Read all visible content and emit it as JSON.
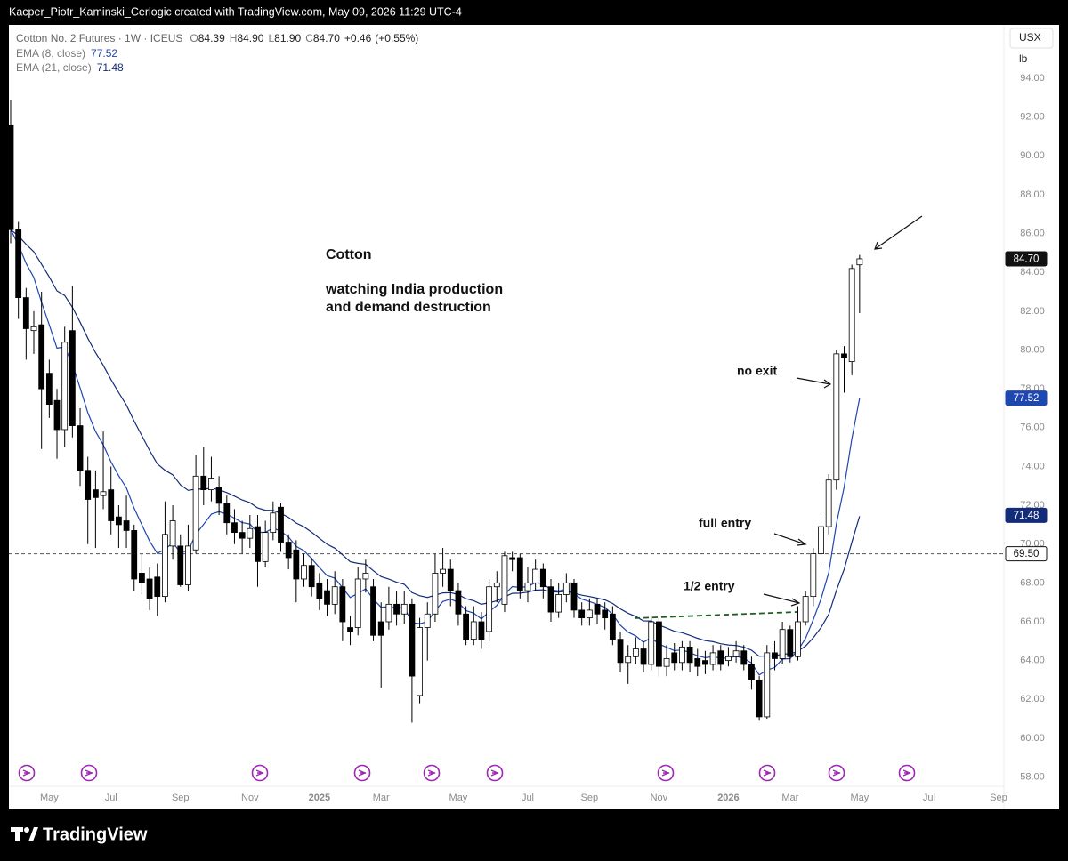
{
  "header": {
    "attribution": "Kacper_Piotr_Kaminski_Cerlogic created with TradingView.com, May 09, 2026 11:29 UTC-4"
  },
  "chart_data": {
    "type": "candlestick",
    "title": "Cotton No. 2 Futures · 1W · ICEUS",
    "summary": [
      {
        "key": "O",
        "value": 84.39,
        "label": "84.39"
      },
      {
        "key": "H",
        "value": 84.9,
        "label": "84.90"
      },
      {
        "key": "L",
        "value": 81.9,
        "label": "81.90"
      },
      {
        "key": "C",
        "value": 84.7,
        "label": "84.70"
      }
    ],
    "change": {
      "value": 0.46,
      "label": "+0.46"
    },
    "change_percent": {
      "value": 0.55,
      "label": "(+0.55%)"
    },
    "currency": "USX",
    "unit": "lb",
    "indicators": [
      {
        "name": "EMA (8, close)",
        "period": 8,
        "value": 77.52,
        "color": "#1f47b0"
      },
      {
        "name": "EMA (21, close)",
        "period": 21,
        "value": 71.48,
        "color": "#132c78"
      }
    ],
    "last_price": {
      "value": 84.7,
      "label": "84.70"
    },
    "horizontal_line": {
      "value": 69.5,
      "label": "69.50"
    },
    "up_color": "#ffffff",
    "down_color": "#000000",
    "wick_color": "#000000",
    "categories": [
      null,
      null,
      null,
      null,
      null,
      null,
      null,
      null,
      null,
      null,
      null,
      null,
      null,
      null,
      null,
      null,
      null,
      null,
      null,
      null,
      null,
      null,
      null,
      null,
      null,
      null,
      null,
      null,
      null,
      null,
      null,
      null,
      null,
      null,
      null,
      null,
      null,
      null,
      null,
      null,
      null,
      null,
      null,
      null,
      null,
      null,
      null,
      null,
      null,
      null,
      null,
      null,
      null,
      null,
      null,
      null,
      null,
      null,
      null,
      null,
      null,
      null,
      null,
      null,
      null,
      null,
      null,
      null,
      null,
      null,
      null,
      null,
      null,
      null,
      null,
      null,
      null,
      null,
      null,
      null,
      null,
      null,
      null,
      null,
      null,
      null,
      null,
      null,
      null,
      null,
      null,
      null,
      null,
      null,
      null,
      null,
      null,
      null,
      null,
      null,
      null,
      null,
      null,
      null,
      null,
      null,
      null,
      null,
      null,
      null,
      null
    ],
    "open": [
      91.6,
      86.2,
      82.7,
      81.0,
      81.3,
      78.8,
      77.4,
      75.9,
      81.0,
      76.1,
      73.8,
      72.8,
      72.5,
      72.8,
      71.4,
      71.2,
      70.7,
      68.5,
      68.2,
      68.3,
      67.3,
      69.9,
      69.9,
      67.9,
      69.7,
      73.5,
      72.8,
      72.9,
      72.1,
      71.1,
      70.6,
      70.3,
      70.9,
      69.1,
      70.6,
      71.9,
      70.1,
      69.7,
      68.2,
      68.9,
      68.0,
      67.6,
      66.9,
      67.8,
      65.7,
      65.7,
      68.2,
      67.8,
      66.0,
      66.0,
      66.9,
      66.4,
      66.9,
      62.2,
      65.7,
      66.4,
      68.5,
      68.7,
      67.6,
      66.4,
      65.1,
      66.0,
      65.5,
      67.8,
      66.9,
      69.3,
      69.3,
      67.6,
      68.0,
      68.7,
      67.8,
      66.5,
      67.4,
      68.0,
      66.6,
      66.2,
      66.9,
      66.6,
      66.4,
      65.1,
      63.9,
      64.2,
      64.6,
      63.8,
      66.0,
      63.7,
      64.4,
      63.9,
      64.7,
      64.1,
      64.0,
      63.8,
      64.5,
      64.0,
      64.2,
      64.5,
      63.8,
      63.0,
      61.1,
      64.4,
      64.1,
      65.6,
      64.2,
      66.0,
      67.3,
      69.5,
      70.9,
      73.3,
      79.8,
      79.4,
      84.39
    ],
    "high": [
      92.9,
      86.6,
      83.2,
      82.0,
      83.0,
      79.5,
      78.0,
      81.2,
      83.3,
      77.0,
      74.5,
      73.8,
      75.8,
      74.0,
      72.0,
      72.5,
      71.0,
      69.5,
      68.8,
      69.0,
      72.2,
      72.0,
      70.5,
      71.0,
      74.6,
      75.0,
      74.5,
      73.5,
      72.5,
      71.8,
      71.2,
      71.5,
      71.5,
      71.2,
      72.2,
      72.1,
      70.5,
      70.2,
      69.5,
      69.3,
      68.5,
      68.2,
      68.6,
      68.2,
      66.3,
      68.8,
      69.2,
      68.2,
      67.0,
      67.8,
      67.6,
      67.6,
      67.2,
      66.2,
      67.0,
      69.5,
      69.8,
      69.2,
      68.0,
      66.8,
      66.8,
      66.5,
      68.2,
      68.6,
      69.6,
      69.6,
      69.5,
      68.8,
      69.2,
      69.0,
      68.2,
      68.0,
      68.5,
      68.2,
      67.0,
      67.2,
      67.2,
      67.0,
      66.8,
      65.5,
      64.8,
      65.2,
      65.0,
      66.3,
      66.2,
      64.8,
      64.9,
      65.0,
      65.0,
      64.6,
      64.5,
      64.8,
      64.8,
      64.7,
      65.0,
      64.8,
      64.2,
      63.2,
      64.8,
      65.0,
      66.0,
      65.8,
      66.8,
      67.6,
      69.8,
      71.3,
      73.6,
      80.0,
      80.2,
      84.4,
      84.9
    ],
    "low": [
      85.5,
      81.6,
      79.5,
      79.8,
      74.9,
      76.5,
      74.4,
      75.0,
      75.5,
      73.0,
      70.0,
      69.8,
      71.8,
      70.5,
      69.8,
      69.8,
      67.6,
      67.4,
      66.6,
      66.3,
      67.0,
      69.2,
      67.8,
      67.6,
      69.5,
      72.0,
      72.2,
      71.5,
      70.5,
      70.0,
      69.5,
      69.8,
      67.8,
      68.8,
      70.2,
      69.6,
      68.7,
      67.0,
      67.8,
      67.3,
      66.6,
      66.3,
      66.4,
      65.0,
      64.8,
      65.3,
      67.5,
      65.0,
      62.6,
      65.6,
      65.8,
      65.9,
      60.8,
      61.8,
      64.0,
      66.0,
      67.8,
      66.8,
      65.8,
      64.8,
      64.8,
      64.6,
      65.0,
      67.0,
      66.5,
      68.6,
      67.2,
      67.0,
      67.6,
      67.2,
      66.0,
      66.2,
      67.0,
      66.2,
      65.8,
      65.8,
      65.9,
      65.6,
      64.8,
      63.4,
      62.8,
      63.8,
      63.4,
      63.5,
      63.2,
      63.2,
      63.5,
      63.5,
      63.4,
      63.2,
      63.3,
      63.5,
      63.5,
      63.7,
      63.9,
      63.5,
      62.5,
      60.9,
      61.0,
      63.5,
      63.8,
      63.9,
      64.0,
      65.8,
      66.8,
      69.0,
      70.5,
      72.8,
      77.8,
      78.7,
      81.9
    ],
    "close": [
      86.2,
      82.7,
      81.1,
      81.2,
      78.0,
      77.2,
      75.9,
      80.4,
      76.1,
      73.8,
      72.3,
      72.4,
      72.7,
      71.2,
      71.0,
      70.7,
      68.2,
      68.0,
      67.2,
      67.3,
      70.5,
      71.2,
      67.9,
      69.9,
      73.5,
      72.8,
      73.4,
      72.1,
      71.1,
      70.6,
      70.3,
      70.8,
      69.1,
      70.6,
      71.6,
      70.1,
      69.3,
      68.2,
      68.9,
      67.8,
      67.2,
      66.9,
      67.8,
      66.0,
      65.5,
      68.2,
      68.5,
      65.3,
      65.3,
      66.9,
      66.4,
      66.9,
      63.2,
      65.7,
      66.4,
      68.5,
      68.7,
      67.6,
      66.4,
      65.1,
      66.0,
      65.1,
      67.8,
      68.0,
      69.4,
      69.2,
      67.6,
      68.0,
      68.7,
      67.8,
      66.5,
      67.4,
      68.0,
      66.6,
      66.2,
      66.6,
      66.4,
      66.2,
      65.1,
      63.9,
      64.2,
      64.6,
      63.8,
      66.0,
      63.7,
      64.1,
      63.9,
      64.7,
      63.9,
      63.7,
      63.8,
      64.4,
      63.8,
      64.2,
      64.5,
      63.8,
      63.0,
      61.1,
      64.4,
      64.1,
      65.6,
      64.2,
      66.0,
      67.3,
      69.5,
      70.9,
      73.3,
      79.8,
      79.6,
      84.2,
      84.7
    ],
    "xlim": [
      -0.23,
      128.7
    ],
    "xticks": [
      {
        "value": 5,
        "label": "May"
      },
      {
        "value": 13,
        "label": "Jul"
      },
      {
        "value": 22,
        "label": "Sep"
      },
      {
        "value": 31,
        "label": "Nov"
      },
      {
        "value": 40,
        "label": "2025"
      },
      {
        "value": 48,
        "label": "Mar"
      },
      {
        "value": 58,
        "label": "May"
      },
      {
        "value": 67,
        "label": "Jul"
      },
      {
        "value": 75,
        "label": "Sep"
      },
      {
        "value": 84,
        "label": "Nov"
      },
      {
        "value": 93,
        "label": "2026"
      },
      {
        "value": 101,
        "label": "Mar"
      },
      {
        "value": 110,
        "label": "May"
      },
      {
        "value": 119,
        "label": "Jul"
      },
      {
        "value": 128,
        "label": "Sep"
      }
    ],
    "ylim": [
      56.33,
      96.75
    ],
    "yticks": [
      {
        "value": 58,
        "label": "58.00"
      },
      {
        "value": 60,
        "label": "60.00"
      },
      {
        "value": 62,
        "label": "62.00"
      },
      {
        "value": 64,
        "label": "64.00"
      },
      {
        "value": 66,
        "label": "66.00"
      },
      {
        "value": 68,
        "label": "68.00"
      },
      {
        "value": 70,
        "label": "70.00"
      },
      {
        "value": 72,
        "label": "72.00"
      },
      {
        "value": 74,
        "label": "74.00"
      },
      {
        "value": 76,
        "label": "76.00"
      },
      {
        "value": 78,
        "label": "78.00"
      },
      {
        "value": 80,
        "label": "80.00"
      },
      {
        "value": 82,
        "label": "82.00"
      },
      {
        "value": 84,
        "label": "84.00"
      },
      {
        "value": 86,
        "label": "86.00"
      },
      {
        "value": 88,
        "label": "88.00"
      },
      {
        "value": 90,
        "label": "90.00"
      },
      {
        "value": 92,
        "label": "92.00"
      },
      {
        "value": 94,
        "label": "94.00"
      }
    ],
    "annotations": {
      "title": "Cotton",
      "body": [
        "watching India production",
        "and demand destruction"
      ],
      "no_exit": "no exit",
      "full_entry": "full entry",
      "half_entry": "1/2 entry"
    }
  },
  "footer": {
    "brand": "TradingView"
  }
}
